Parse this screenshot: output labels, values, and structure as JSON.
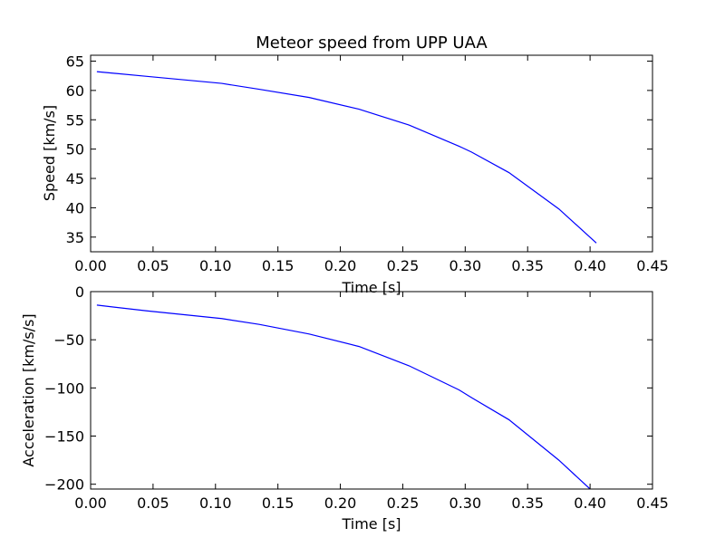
{
  "colors": {
    "line": "#0000ff",
    "axes": "#000000",
    "background": "#ffffff"
  },
  "chart_data": [
    {
      "type": "line",
      "title": "Meteor speed from  UPP UAA",
      "xlabel": "Time [s]",
      "ylabel": "Speed [km/s]",
      "xlim": [
        0.0,
        0.45
      ],
      "ylim": [
        32.5,
        66.0
      ],
      "xticks": [
        "0.00",
        "0.05",
        "0.10",
        "0.15",
        "0.20",
        "0.25",
        "0.30",
        "0.35",
        "0.40",
        "0.45"
      ],
      "yticks": [
        "35",
        "40",
        "45",
        "50",
        "55",
        "60",
        "65"
      ],
      "grid": false,
      "series": [
        {
          "x": [
            0.005,
            0.045,
            0.105,
            0.135,
            0.175,
            0.215,
            0.255,
            0.295,
            0.305,
            0.335,
            0.375,
            0.405
          ],
          "values": [
            63.2,
            62.4,
            61.2,
            60.2,
            58.8,
            56.8,
            54.1,
            50.5,
            49.5,
            46.0,
            39.8,
            34.0
          ]
        }
      ]
    },
    {
      "type": "line",
      "title": "",
      "xlabel": "Time [s]",
      "ylabel": "Acceleration [km/s/s]",
      "xlim": [
        0.0,
        0.45
      ],
      "ylim": [
        -205.0,
        0.0
      ],
      "xticks": [
        "0.00",
        "0.05",
        "0.10",
        "0.15",
        "0.20",
        "0.25",
        "0.30",
        "0.35",
        "0.40",
        "0.45"
      ],
      "yticks": [
        "−200",
        "−150",
        "−100",
        "−50",
        "0"
      ],
      "grid": false,
      "series": [
        {
          "x": [
            0.005,
            0.045,
            0.105,
            0.135,
            0.175,
            0.215,
            0.255,
            0.295,
            0.305,
            0.335,
            0.375,
            0.4
          ],
          "values": [
            -14,
            -20,
            -28,
            -34,
            -44,
            -57,
            -77,
            -102,
            -110,
            -133,
            -175,
            -205
          ]
        }
      ]
    }
  ]
}
